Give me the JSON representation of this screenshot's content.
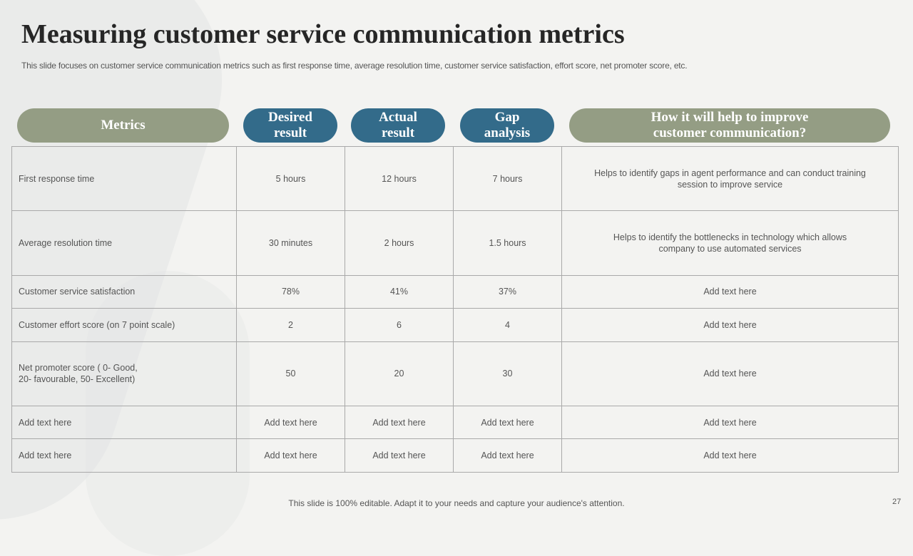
{
  "header": {
    "title": "Measuring customer service communication metrics",
    "subtitle": "This slide focuses on customer service communication metrics such as first response time, average resolution time, customer service satisfaction, effort score, net promoter score, etc."
  },
  "table": {
    "columns": [
      "Metrics",
      "Desired result",
      "Actual result",
      "Gap analysis",
      "How it will help to improve customer communication?"
    ],
    "rows": [
      [
        "First response time",
        "5 hours",
        "12 hours",
        "7 hours",
        "Helps to identify gaps in agent performance  and can conduct training\nsession to improve  service"
      ],
      [
        "Average  resolution time",
        "30 minutes",
        "2 hours",
        "1.5 hours",
        "Helps to identify the bottlenecks in technology which allows\ncompany to use automated services"
      ],
      [
        "Customer  service  satisfaction",
        "78%",
        "41%",
        "37%",
        "Add text here"
      ],
      [
        "Customer  effort  score  (on 7 point scale)",
        "2",
        "6",
        "4",
        "Add text here"
      ],
      [
        "Net  promoter  score  ( 0- Good,\n20- favourable,  50- Excellent)",
        "50",
        "20",
        "30",
        "Add text here"
      ],
      [
        "Add text here",
        "Add text here",
        "Add text here",
        "Add text here",
        "Add text here"
      ],
      [
        "Add text here",
        "Add text here",
        "Add text here",
        "Add text here",
        "Add text here"
      ]
    ]
  },
  "footer": {
    "note": "This slide is 100% editable. Adapt it to your needs and capture your audience's attention.",
    "page": "27"
  }
}
